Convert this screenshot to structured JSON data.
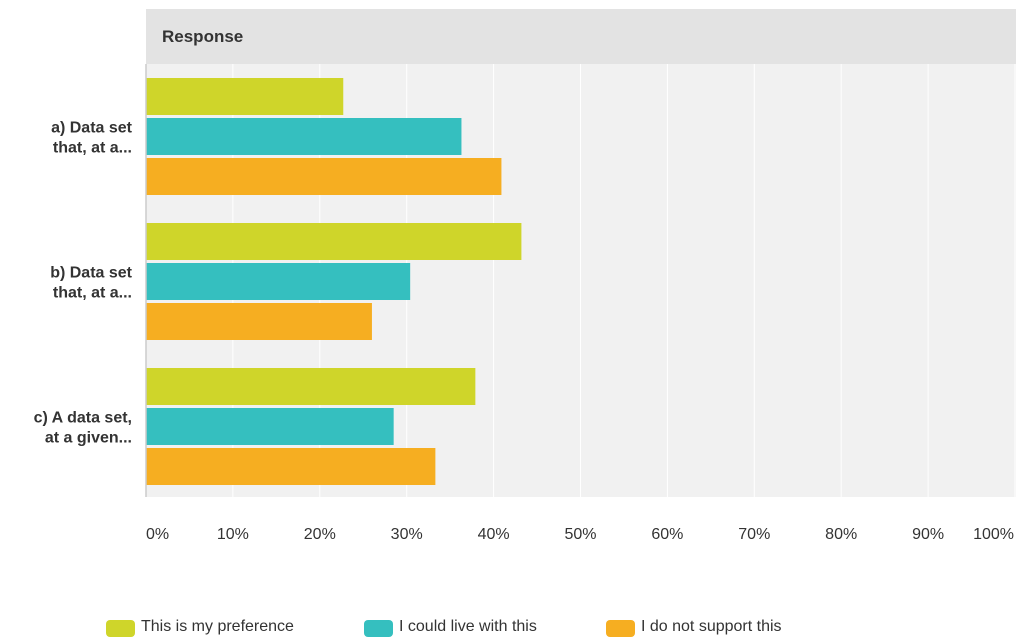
{
  "chart_data": {
    "type": "bar",
    "orientation": "horizontal",
    "header": "Response",
    "categories": [
      [
        "a) Data set",
        "that, at a..."
      ],
      [
        "b) Data set",
        "that, at a..."
      ],
      [
        "c) A data set,",
        "at a given..."
      ]
    ],
    "series": [
      {
        "name": "This is my preference",
        "color": "#cfd52a",
        "values": [
          22.7,
          43.2,
          37.9
        ]
      },
      {
        "name": "I could live with this",
        "color": "#35bfbf",
        "values": [
          36.3,
          30.4,
          28.5
        ]
      },
      {
        "name": "I do not support this",
        "color": "#f6ae21",
        "values": [
          40.9,
          26.0,
          33.3
        ]
      }
    ],
    "xlim": [
      0,
      100
    ],
    "x_ticks": [
      "0%",
      "10%",
      "20%",
      "30%",
      "40%",
      "50%",
      "60%",
      "70%",
      "80%",
      "90%",
      "100%"
    ],
    "grid": true,
    "legend_position": "bottom"
  }
}
